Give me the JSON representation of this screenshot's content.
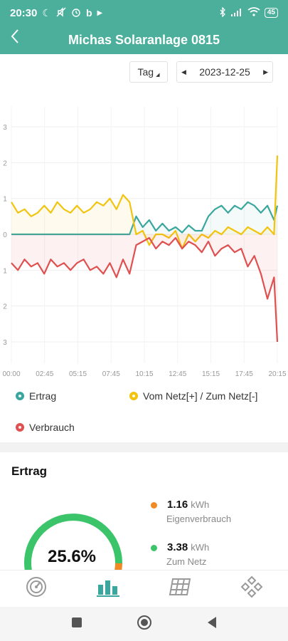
{
  "status_bar": {
    "time": "20:30",
    "battery": "45",
    "icons": [
      "moon-icon",
      "mute-icon",
      "alarm-icon",
      "b-app-icon",
      "play-icon",
      "bluetooth-icon",
      "signal-icon",
      "wifi-icon"
    ]
  },
  "header": {
    "back_icon": "chevron-left-icon",
    "title": "Michas Solaranlage 0815"
  },
  "date_bar": {
    "period": "Tag",
    "date": "2023-12-25"
  },
  "chart_data": {
    "type": "line",
    "x_ticks": [
      "00:00",
      "02:45",
      "05:15",
      "07:45",
      "10:15",
      "12:45",
      "15:15",
      "17:45",
      "20:15"
    ],
    "y_ticks": [
      "3",
      "2",
      "1",
      "0",
      "1",
      "2",
      "3"
    ],
    "ylim": [
      -3,
      3
    ],
    "grid": true,
    "legend_position": "bottom",
    "x": [
      "00:00",
      "00:30",
      "01:00",
      "01:30",
      "02:00",
      "02:30",
      "03:00",
      "03:30",
      "04:00",
      "04:30",
      "05:00",
      "05:30",
      "06:00",
      "06:30",
      "07:00",
      "07:30",
      "08:00",
      "08:30",
      "09:00",
      "09:30",
      "10:00",
      "10:30",
      "11:00",
      "11:30",
      "12:00",
      "12:30",
      "13:00",
      "13:30",
      "14:00",
      "14:30",
      "15:00",
      "15:30",
      "16:00",
      "16:30",
      "17:00",
      "17:30",
      "18:00",
      "18:30",
      "19:00",
      "19:30",
      "20:00",
      "20:15"
    ],
    "series": [
      {
        "name": "Ertrag",
        "color": "#3aa79e",
        "values": [
          0,
          0,
          0,
          0,
          0,
          0,
          0,
          0,
          0,
          0,
          0,
          0,
          0,
          0,
          0,
          0,
          0,
          0,
          0,
          0.5,
          0.2,
          0.4,
          0.1,
          0.3,
          0.1,
          0.2,
          0.05,
          0.25,
          0.1,
          0.1,
          0.5,
          0.7,
          0.8,
          0.6,
          0.8,
          0.7,
          0.9,
          0.8,
          0.6,
          0.8,
          0.4,
          0.8
        ]
      },
      {
        "name": "Vom Netz[+] / Zum Netz[-]",
        "color": "#f2c40f",
        "values": [
          0.9,
          0.6,
          0.7,
          0.5,
          0.6,
          0.8,
          0.6,
          0.9,
          0.7,
          0.6,
          0.8,
          0.6,
          0.7,
          0.9,
          0.8,
          1.0,
          0.7,
          1.1,
          0.9,
          0.0,
          0.1,
          -0.3,
          0.0,
          0.0,
          -0.1,
          0.1,
          -0.4,
          0.0,
          -0.2,
          0.0,
          -0.1,
          0.1,
          0.0,
          0.2,
          0.1,
          0.0,
          0.2,
          0.1,
          0.0,
          0.2,
          0.0,
          2.2
        ]
      },
      {
        "name": "Verbrauch",
        "color": "#e05050",
        "values": [
          -0.8,
          -1.0,
          -0.7,
          -0.9,
          -0.8,
          -1.1,
          -0.7,
          -0.9,
          -0.8,
          -1.0,
          -0.8,
          -0.7,
          -1.0,
          -0.9,
          -1.1,
          -0.8,
          -1.2,
          -0.7,
          -1.1,
          -0.3,
          -0.2,
          -0.1,
          -0.4,
          -0.2,
          -0.3,
          -0.1,
          -0.4,
          -0.2,
          -0.3,
          -0.5,
          -0.2,
          -0.6,
          -0.4,
          -0.3,
          -0.5,
          -0.4,
          -0.9,
          -0.6,
          -1.1,
          -1.8,
          -1.2,
          -3.0
        ]
      }
    ]
  },
  "legend": {
    "items": [
      {
        "label": "Ertrag",
        "color": "#3aa79e"
      },
      {
        "label": "Vom Netz[+] / Zum Netz[-]",
        "color": "#f2c40f"
      },
      {
        "label": "Verbrauch",
        "color": "#e05050"
      }
    ]
  },
  "summary": {
    "title": "Ertrag",
    "gauge_percent": "25.6%",
    "gauge_fraction": 0.256,
    "gauge_colors": {
      "main": "#3cc46a",
      "accent": "#f08a24"
    },
    "stats": [
      {
        "value": "1.16",
        "unit": "kWh",
        "label": "Eigenverbrauch",
        "color": "#f08a24"
      },
      {
        "value": "3.38",
        "unit": "kWh",
        "label": "Zum Netz",
        "color": "#3cc46a"
      }
    ]
  },
  "tab_bar": {
    "items": [
      {
        "icon": "gauge-icon",
        "active": false
      },
      {
        "icon": "bar-chart-icon",
        "active": true
      },
      {
        "icon": "solar-panel-icon",
        "active": false
      },
      {
        "icon": "devices-grid-icon",
        "active": false
      }
    ],
    "active_color": "#3aa79e"
  },
  "nav_bar": {
    "icons": [
      "square-icon",
      "circle-icon",
      "triangle-back-icon"
    ]
  }
}
